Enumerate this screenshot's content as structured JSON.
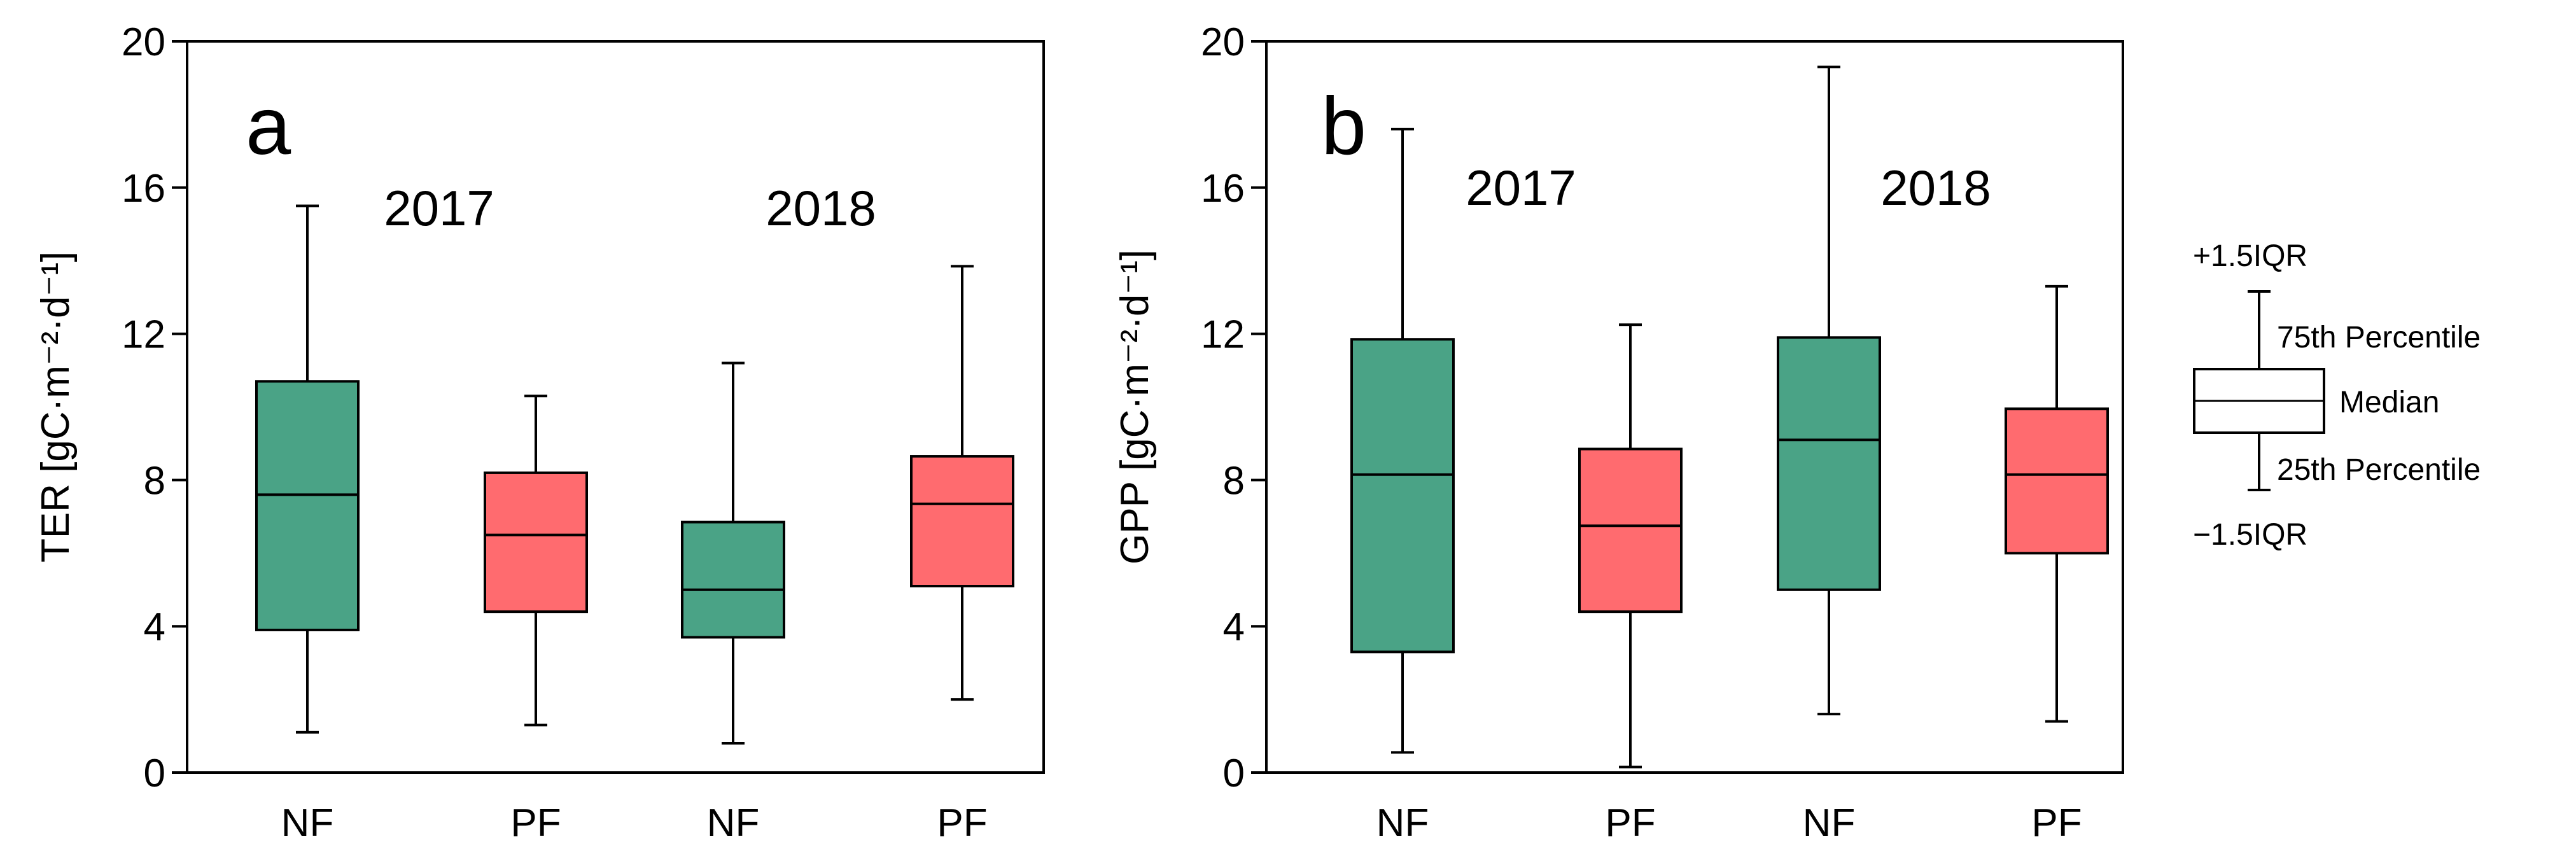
{
  "chart_data": [
    {
      "type": "boxplot",
      "panel": "a",
      "ylabel": "TER [gC·m⁻²·d⁻¹]",
      "ylim": [
        0,
        20
      ],
      "yticks": [
        0,
        4,
        8,
        12,
        16,
        20
      ],
      "categories": [
        "NF",
        "PF",
        "NF",
        "PF"
      ],
      "groups": [
        {
          "year": "2017",
          "members": [
            0,
            1
          ]
        },
        {
          "year": "2018",
          "members": [
            2,
            3
          ]
        }
      ],
      "boxes": [
        {
          "category": "NF",
          "year": "2017",
          "whisker_low": 1.1,
          "q1": 3.9,
          "median": 7.6,
          "q3": 10.7,
          "whisker_high": 15.5,
          "color": "#4aa386"
        },
        {
          "category": "PF",
          "year": "2017",
          "whisker_low": 1.3,
          "q1": 4.4,
          "median": 6.5,
          "q3": 8.2,
          "whisker_high": 10.3,
          "color": "#ff6b6f"
        },
        {
          "category": "NF",
          "year": "2018",
          "whisker_low": 0.8,
          "q1": 3.7,
          "median": 5.0,
          "q3": 6.85,
          "whisker_high": 11.2,
          "color": "#4aa386"
        },
        {
          "category": "PF",
          "year": "2018",
          "whisker_low": 2.0,
          "q1": 5.1,
          "median": 7.35,
          "q3": 8.65,
          "whisker_high": 13.85,
          "color": "#ff6b6f"
        }
      ]
    },
    {
      "type": "boxplot",
      "panel": "b",
      "ylabel": "GPP [gC·m⁻²·d⁻¹]",
      "ylim": [
        0,
        20
      ],
      "yticks": [
        0,
        4,
        8,
        12,
        16,
        20
      ],
      "categories": [
        "NF",
        "PF",
        "NF",
        "PF"
      ],
      "groups": [
        {
          "year": "2017",
          "members": [
            0,
            1
          ]
        },
        {
          "year": "2018",
          "members": [
            2,
            3
          ]
        }
      ],
      "boxes": [
        {
          "category": "NF",
          "year": "2017",
          "whisker_low": 0.55,
          "q1": 3.3,
          "median": 8.15,
          "q3": 11.85,
          "whisker_high": 17.6,
          "color": "#4aa386"
        },
        {
          "category": "PF",
          "year": "2017",
          "whisker_low": 0.15,
          "q1": 4.4,
          "median": 6.75,
          "q3": 8.85,
          "whisker_high": 12.25,
          "color": "#ff6b6f"
        },
        {
          "category": "NF",
          "year": "2018",
          "whisker_low": 1.6,
          "q1": 5.0,
          "median": 9.1,
          "q3": 11.9,
          "whisker_high": 19.3,
          "color": "#4aa386"
        },
        {
          "category": "PF",
          "year": "2018",
          "whisker_low": 1.4,
          "q1": 6.0,
          "median": 8.15,
          "q3": 9.95,
          "whisker_high": 13.3,
          "color": "#ff6b6f"
        }
      ]
    }
  ],
  "legend": {
    "upper_whisker": "+1.5IQR",
    "q3": "75th Percentile",
    "median": "Median",
    "q1": "25th Percentile",
    "lower_whisker": "−1.5IQR"
  }
}
